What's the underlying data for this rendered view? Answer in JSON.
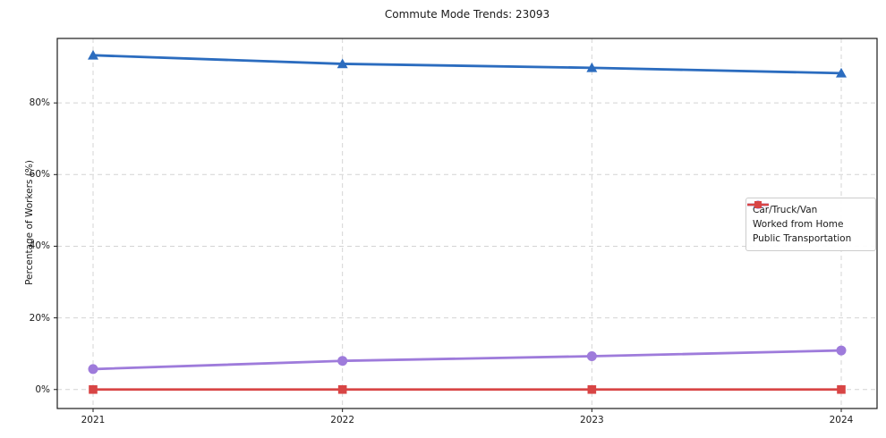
{
  "title": "Commute Mode Trends: 23093",
  "colors": {
    "background": "#ffffff",
    "plot_border": "#1c1c1c",
    "grid": "#d4d4d4",
    "text": "#1a1a1a",
    "car_series": "#2b6cbf",
    "home_series": "#9e7bdb",
    "transit_series": "#d84545"
  },
  "chart_data": {
    "type": "line",
    "title": "Commute Mode Trends: 23093",
    "xlabel": "",
    "ylabel": "Percentage of Workers (%)",
    "x": [
      2021,
      2022,
      2023,
      2024
    ],
    "xtick_labels": [
      "2021",
      "2022",
      "2023",
      "2024"
    ],
    "ytick_values": [
      0,
      20,
      40,
      60,
      80
    ],
    "ytick_labels": [
      "0%",
      "20%",
      "40%",
      "60%",
      "80%"
    ],
    "ylim": [
      -5.3,
      98.0
    ],
    "grid": true,
    "grid_style": "dashed",
    "legend_position": "center-right",
    "legend_entries": [
      "Car/Truck/Van",
      "Worked from Home",
      "Public Transportation"
    ],
    "series": [
      {
        "name": "Car/Truck/Van",
        "color": "#2b6cbf",
        "marker": "triangle",
        "values": [
          93.3,
          90.9,
          89.8,
          88.3
        ]
      },
      {
        "name": "Worked from Home",
        "color": "#9e7bdb",
        "marker": "circle",
        "values": [
          5.7,
          8.0,
          9.3,
          10.9
        ]
      },
      {
        "name": "Public Transportation",
        "color": "#d84545",
        "marker": "square",
        "values": [
          0.0,
          0.0,
          0.0,
          0.0
        ]
      }
    ]
  }
}
